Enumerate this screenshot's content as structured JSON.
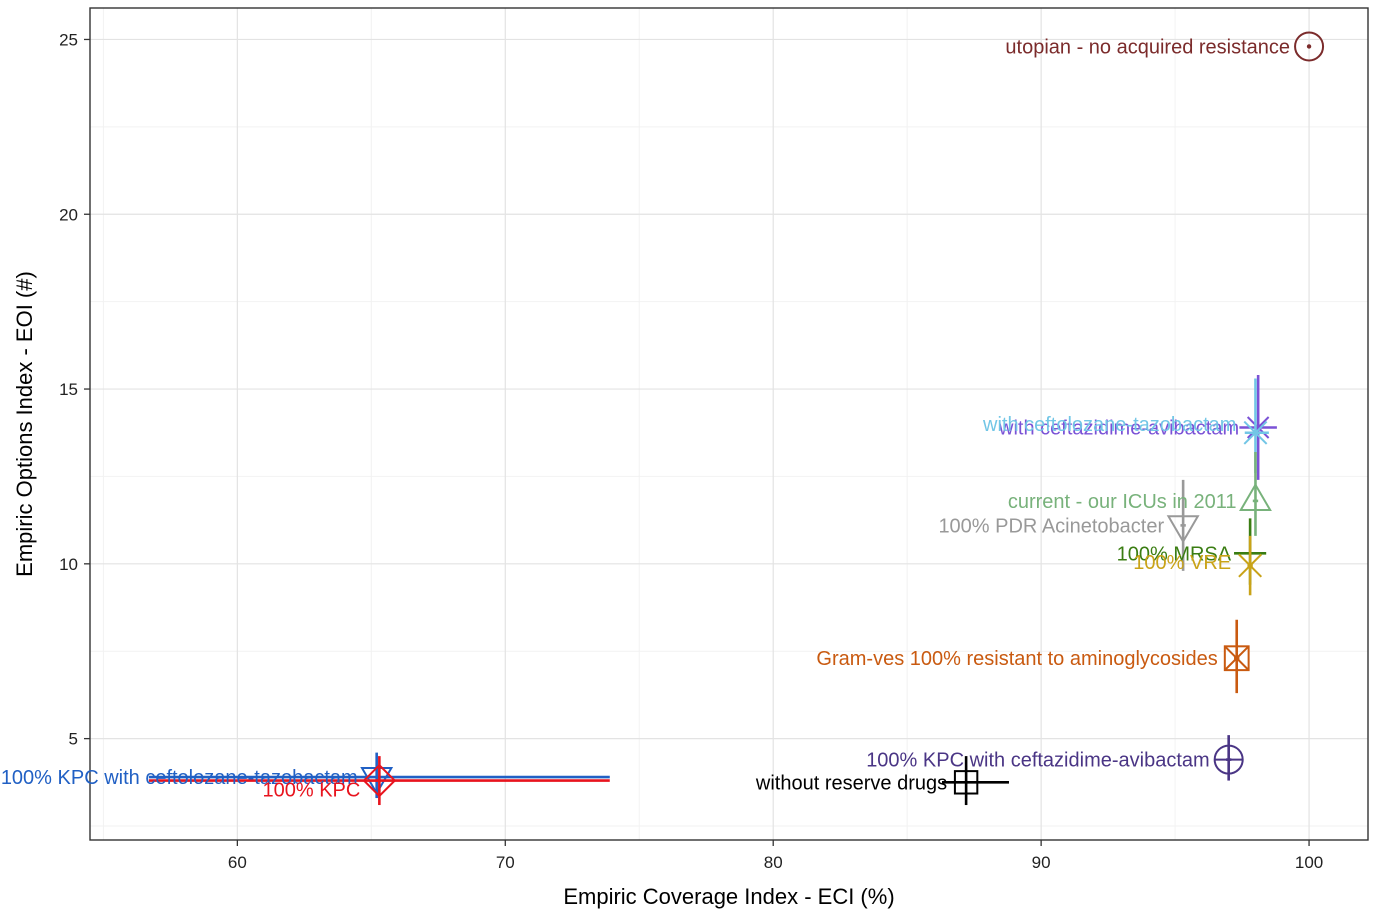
{
  "chart_data": {
    "type": "scatter",
    "title": "",
    "xlabel": "Empiric Coverage Index - ECI (%)",
    "ylabel": "Empiric Options Index - EOI (#)",
    "xlim": [
      54.5,
      102.2
    ],
    "ylim": [
      2.1,
      25.9
    ],
    "x_ticks": [
      60,
      70,
      80,
      90,
      100
    ],
    "y_ticks": [
      5,
      10,
      15,
      20,
      25
    ],
    "grid": true,
    "legend": "none",
    "points": [
      {
        "label": "utopian - no acquired resistance",
        "x": 100.0,
        "y": 24.8,
        "color": "#7b2b2b",
        "shape": "circle-dot",
        "label_dy": 0
      },
      {
        "label": "with ceftazidime-avibactam",
        "x": 98.1,
        "y": 13.9,
        "x_err": [
          97.4,
          98.8
        ],
        "y_err": [
          12.4,
          15.4
        ],
        "color": "#7b52d6",
        "shape": "asterisk",
        "label_dy": 0
      },
      {
        "label": "with ceftolozane-tazobactam",
        "x": 98.0,
        "y": 13.75,
        "x_err": [
          97.6,
          98.5
        ],
        "y_err": [
          12.6,
          15.3
        ],
        "color": "#72c6e6",
        "shape": "x-cross",
        "label_dy": 0.25
      },
      {
        "label": "current - our ICUs in 2011",
        "x": 98.0,
        "y": 11.8,
        "x_err": [
          97.9,
          98.1
        ],
        "y_err": [
          10.8,
          13.2
        ],
        "color": "#78b27b",
        "shape": "triangle-up",
        "label_dy": 0
      },
      {
        "label": "100% PDR Acinetobacter",
        "x": 95.3,
        "y": 11.1,
        "x_err": [
          95.2,
          95.4
        ],
        "y_err": [
          9.8,
          12.4
        ],
        "color": "#999999",
        "shape": "triangle-down",
        "label_dy": 0
      },
      {
        "label": "100% MRSA",
        "x": 97.8,
        "y": 10.3,
        "x_err": [
          97.2,
          98.4
        ],
        "y_err": [
          9.4,
          11.3
        ],
        "color": "#3a7d12",
        "shape": "plus",
        "label_dy": 0
      },
      {
        "label": "100% VRE",
        "x": 97.8,
        "y": 9.95,
        "x_err": [
          97.7,
          97.9
        ],
        "y_err": [
          9.1,
          10.8
        ],
        "color": "#c9a318",
        "shape": "x-cross",
        "label_dy": 0.1
      },
      {
        "label": "Gram-ves 100% resistant to aminoglycosides",
        "x": 97.3,
        "y": 7.3,
        "x_err": [
          97.2,
          97.4
        ],
        "y_err": [
          6.3,
          8.4
        ],
        "color": "#c95a10",
        "shape": "square-x",
        "label_dy": 0
      },
      {
        "label": "100% KPC with ceftazidime-avibactam",
        "x": 97.0,
        "y": 4.4,
        "x_err": [
          96.9,
          97.1
        ],
        "y_err": [
          3.8,
          5.1
        ],
        "color": "#4a3585",
        "shape": "circle-plus",
        "label_dy": 0
      },
      {
        "label": "without reserve drugs",
        "x": 87.2,
        "y": 3.75,
        "x_err": [
          86.3,
          88.8
        ],
        "y_err": [
          3.1,
          4.5
        ],
        "color": "#000000",
        "shape": "square-plus",
        "label_dy": 0
      },
      {
        "label": "100% KPC with ceftolozane-tazobactam",
        "x": 65.2,
        "y": 3.9,
        "x_err": [
          56.7,
          73.9
        ],
        "y_err": [
          3.3,
          4.6
        ],
        "color": "#2160c4",
        "shape": "triangle-down",
        "label_dy": 0
      },
      {
        "label": "100% KPC",
        "x": 65.3,
        "y": 3.8,
        "x_err": [
          56.7,
          73.9
        ],
        "y_err": [
          3.1,
          4.5
        ],
        "color": "#e8141e",
        "shape": "diamond-plus",
        "label_dy": -0.25
      }
    ]
  }
}
